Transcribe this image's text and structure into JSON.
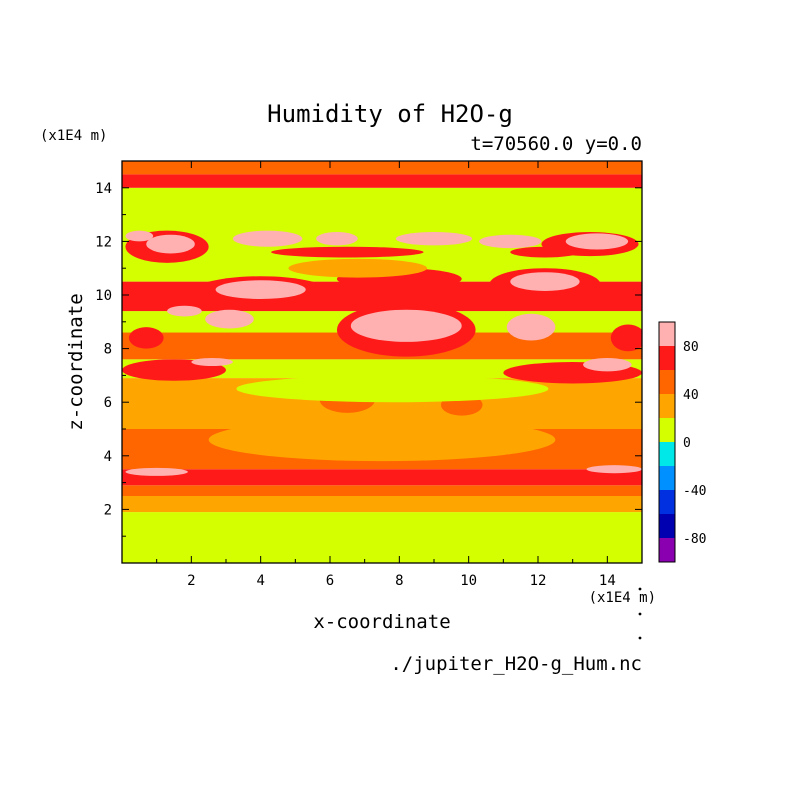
{
  "chart_data": {
    "type": "heatmap",
    "title": "Humidity of H2O-g",
    "subtitle": "t=70560.0 y=0.0",
    "xlabel": "x-coordinate",
    "ylabel": "z-coordinate",
    "x_unit": "(x1E4 m)",
    "y_unit": "(x1E4 m)",
    "source_file": "./jupiter_H2O-g_Hum.nc",
    "xlim": [
      0,
      15
    ],
    "ylim": [
      0,
      15
    ],
    "x_ticks": [
      2,
      4,
      6,
      8,
      10,
      12,
      14
    ],
    "y_ticks": [
      2,
      4,
      6,
      8,
      10,
      12,
      14
    ],
    "colorbar": {
      "levels": [
        -100,
        -80,
        -60,
        -40,
        -20,
        0,
        20,
        40,
        60,
        80,
        100
      ],
      "tick_labels": [
        "80",
        "40",
        "0",
        "-40",
        "-80"
      ],
      "tick_values": [
        80,
        40,
        0,
        -40,
        -80
      ],
      "colors": [
        "#8a00b0",
        "#0000b0",
        "#0030e0",
        "#0090ff",
        "#00e8e8",
        "#d4ff00",
        "#ffa500",
        "#ff6600",
        "#ff1a1a",
        "#ffb0b0"
      ]
    },
    "bands": [
      {
        "z0": 0.0,
        "z1": 1.9,
        "value": 10
      },
      {
        "z0": 1.9,
        "z1": 2.5,
        "value": 30
      },
      {
        "z0": 2.5,
        "z1": 2.9,
        "value": 50
      },
      {
        "z0": 2.9,
        "z1": 3.5,
        "value": 70
      },
      {
        "z0": 3.5,
        "z1": 5.0,
        "value": 50
      },
      {
        "z0": 5.0,
        "z1": 6.9,
        "value": 30
      },
      {
        "z0": 6.9,
        "z1": 7.6,
        "value": 10
      },
      {
        "z0": 7.6,
        "z1": 8.6,
        "value": 50
      },
      {
        "z0": 8.6,
        "z1": 9.4,
        "value": 10
      },
      {
        "z0": 9.4,
        "z1": 10.5,
        "value": 70
      },
      {
        "z0": 10.5,
        "z1": 12.5,
        "value": 10
      },
      {
        "z0": 12.5,
        "z1": 14.0,
        "value": 10
      },
      {
        "z0": 14.0,
        "z1": 14.5,
        "value": 70
      },
      {
        "z0": 14.5,
        "z1": 15.0,
        "value": 50
      }
    ],
    "blobs": [
      {
        "x": 7.5,
        "z": 4.6,
        "rx": 5.0,
        "rz": 0.8,
        "value": 30
      },
      {
        "x": 12.5,
        "z": 5.8,
        "rx": 2.8,
        "rz": 0.7,
        "value": 30
      },
      {
        "x": 6.5,
        "z": 6.1,
        "rx": 0.8,
        "rz": 0.5,
        "value": 50
      },
      {
        "x": 9.8,
        "z": 5.9,
        "rx": 0.6,
        "rz": 0.4,
        "value": 50
      },
      {
        "x": 7.8,
        "z": 6.5,
        "rx": 4.5,
        "rz": 0.5,
        "value": 10
      },
      {
        "x": 1.0,
        "z": 3.4,
        "rx": 0.9,
        "rz": 0.15,
        "value": 90
      },
      {
        "x": 14.2,
        "z": 3.5,
        "rx": 0.8,
        "rz": 0.15,
        "value": 90
      },
      {
        "x": 7.5,
        "z": 3.2,
        "rx": 3.5,
        "rz": 0.2,
        "value": 70
      },
      {
        "x": 1.5,
        "z": 7.2,
        "rx": 1.5,
        "rz": 0.4,
        "value": 70
      },
      {
        "x": 13.0,
        "z": 7.1,
        "rx": 2.0,
        "rz": 0.4,
        "value": 70
      },
      {
        "x": 2.6,
        "z": 7.5,
        "rx": 0.6,
        "rz": 0.15,
        "value": 90
      },
      {
        "x": 14.0,
        "z": 7.4,
        "rx": 0.7,
        "rz": 0.25,
        "value": 90
      },
      {
        "x": 8.2,
        "z": 8.7,
        "rx": 2.0,
        "rz": 1.0,
        "value": 70
      },
      {
        "x": 8.2,
        "z": 8.85,
        "rx": 1.6,
        "rz": 0.6,
        "value": 90
      },
      {
        "x": 3.1,
        "z": 9.1,
        "rx": 0.7,
        "rz": 0.35,
        "value": 90
      },
      {
        "x": 1.8,
        "z": 9.4,
        "rx": 0.5,
        "rz": 0.2,
        "value": 90
      },
      {
        "x": 11.8,
        "z": 8.8,
        "rx": 0.7,
        "rz": 0.5,
        "value": 90
      },
      {
        "x": 14.6,
        "z": 8.4,
        "rx": 0.5,
        "rz": 0.5,
        "value": 70
      },
      {
        "x": 0.7,
        "z": 8.4,
        "rx": 0.5,
        "rz": 0.4,
        "value": 70
      },
      {
        "x": 4.0,
        "z": 10.1,
        "rx": 2.0,
        "rz": 0.6,
        "value": 70
      },
      {
        "x": 4.0,
        "z": 10.2,
        "rx": 1.3,
        "rz": 0.35,
        "value": 90
      },
      {
        "x": 8.0,
        "z": 10.6,
        "rx": 1.8,
        "rz": 0.4,
        "value": 70
      },
      {
        "x": 12.2,
        "z": 10.4,
        "rx": 1.6,
        "rz": 0.6,
        "value": 70
      },
      {
        "x": 12.2,
        "z": 10.5,
        "rx": 1.0,
        "rz": 0.35,
        "value": 90
      },
      {
        "x": 6.8,
        "z": 11.0,
        "rx": 2.0,
        "rz": 0.35,
        "value": 30
      },
      {
        "x": 1.3,
        "z": 11.8,
        "rx": 1.2,
        "rz": 0.6,
        "value": 70
      },
      {
        "x": 1.4,
        "z": 11.9,
        "rx": 0.7,
        "rz": 0.35,
        "value": 90
      },
      {
        "x": 0.5,
        "z": 12.2,
        "rx": 0.4,
        "rz": 0.2,
        "value": 90
      },
      {
        "x": 4.2,
        "z": 12.1,
        "rx": 1.0,
        "rz": 0.3,
        "value": 90
      },
      {
        "x": 6.2,
        "z": 12.1,
        "rx": 0.6,
        "rz": 0.25,
        "value": 90
      },
      {
        "x": 9.0,
        "z": 12.1,
        "rx": 1.1,
        "rz": 0.25,
        "value": 90
      },
      {
        "x": 11.2,
        "z": 12.0,
        "rx": 0.9,
        "rz": 0.25,
        "value": 90
      },
      {
        "x": 13.5,
        "z": 11.9,
        "rx": 1.4,
        "rz": 0.45,
        "value": 70
      },
      {
        "x": 13.7,
        "z": 12.0,
        "rx": 0.9,
        "rz": 0.3,
        "value": 90
      },
      {
        "x": 12.2,
        "z": 11.6,
        "rx": 1.0,
        "rz": 0.2,
        "value": 70
      },
      {
        "x": 6.5,
        "z": 11.6,
        "rx": 2.2,
        "rz": 0.2,
        "value": 70
      }
    ]
  }
}
